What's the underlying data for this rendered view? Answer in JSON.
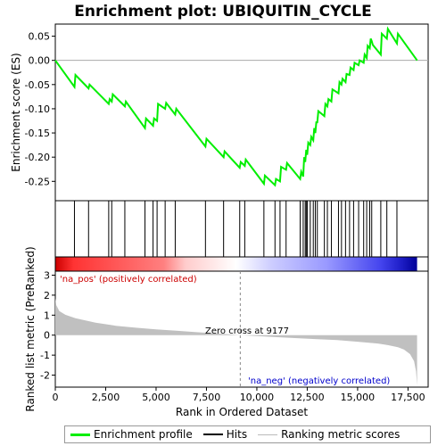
{
  "chart_data": {
    "type": "line",
    "title": "Enrichment plot: UBIQUITIN_CYCLE",
    "top_panel": {
      "ylabel": "Enrichment score (ES)",
      "ylim": [
        -0.29,
        0.075
      ],
      "yticks": [
        0.05,
        0.0,
        -0.05,
        -0.1,
        -0.15,
        -0.2,
        -0.25
      ],
      "ytick_labels": [
        "0.05",
        "0.00",
        "-0.05",
        "-0.10",
        "-0.15",
        "-0.20",
        "-0.25"
      ],
      "series": [
        {
          "name": "Enrichment profile",
          "color": "#00ee00",
          "x": [
            0,
            950,
            1000,
            1650,
            1700,
            2650,
            2700,
            2800,
            2850,
            3450,
            3500,
            4450,
            4500,
            4850,
            4900,
            5050,
            5100,
            5450,
            5500,
            5950,
            6000,
            7450,
            7500,
            8350,
            8400,
            9150,
            9200,
            9400,
            9450,
            10350,
            10400,
            10900,
            10950,
            11150,
            11200,
            11450,
            11500,
            12150,
            12200,
            12300,
            12350,
            12400,
            12450,
            12500,
            12550,
            12650,
            12700,
            12800,
            12850,
            12900,
            12950,
            13000,
            13050,
            13350,
            13400,
            13500,
            13550,
            13700,
            13750,
            14050,
            14100,
            14200,
            14250,
            14400,
            14450,
            14600,
            14650,
            14800,
            14850,
            15050,
            15100,
            15300,
            15350,
            15450,
            15500,
            15600,
            15650,
            15700,
            15750,
            16150,
            16200,
            16450,
            16500,
            16950,
            17000,
            17950
          ],
          "y": [
            0.0,
            -0.055,
            -0.03,
            -0.058,
            -0.05,
            -0.09,
            -0.08,
            -0.085,
            -0.07,
            -0.095,
            -0.085,
            -0.14,
            -0.12,
            -0.135,
            -0.12,
            -0.125,
            -0.09,
            -0.1,
            -0.088,
            -0.112,
            -0.1,
            -0.178,
            -0.162,
            -0.2,
            -0.188,
            -0.222,
            -0.21,
            -0.218,
            -0.205,
            -0.255,
            -0.238,
            -0.258,
            -0.245,
            -0.25,
            -0.22,
            -0.226,
            -0.212,
            -0.245,
            -0.23,
            -0.24,
            -0.2,
            -0.21,
            -0.185,
            -0.195,
            -0.17,
            -0.175,
            -0.158,
            -0.165,
            -0.14,
            -0.15,
            -0.128,
            -0.128,
            -0.105,
            -0.115,
            -0.09,
            -0.095,
            -0.08,
            -0.085,
            -0.06,
            -0.068,
            -0.045,
            -0.05,
            -0.038,
            -0.045,
            -0.028,
            -0.03,
            -0.015,
            -0.02,
            -0.005,
            -0.01,
            0.0,
            -0.005,
            0.012,
            0.005,
            0.03,
            0.025,
            0.045,
            0.04,
            0.032,
            0.012,
            0.055,
            0.045,
            0.065,
            0.035,
            0.055,
            0.0
          ]
        }
      ]
    },
    "hits_panel": {
      "name": "Hits",
      "hit_positions": [
        950,
        1650,
        2650,
        2800,
        3450,
        4450,
        4850,
        5050,
        5450,
        5950,
        7450,
        8350,
        9150,
        9400,
        10350,
        10900,
        11150,
        11450,
        12150,
        12300,
        12400,
        12450,
        12500,
        12650,
        12800,
        12900,
        13000,
        13350,
        13500,
        13700,
        14050,
        14200,
        14400,
        14600,
        14800,
        15050,
        15300,
        15450,
        15600,
        15700,
        16150,
        16450,
        16950
      ]
    },
    "bottom_panel": {
      "name": "Ranking metric scores",
      "xlabel": "Rank in Ordered Dataset",
      "ylabel": "Ranked list metric (PreRanked)",
      "ylim": [
        -2.6,
        3.2
      ],
      "yticks": [
        3,
        2,
        1,
        0,
        -1,
        -2
      ],
      "ytick_labels": [
        "3",
        "2",
        "1",
        "0",
        "-1",
        "-2"
      ],
      "metric_x": [
        0,
        50,
        200,
        500,
        1000,
        2000,
        3000,
        4000,
        5000,
        6000,
        7000,
        8000,
        9177,
        10000,
        11000,
        12000,
        13000,
        14000,
        15000,
        16000,
        16500,
        17000,
        17300,
        17600,
        17800,
        17900,
        17950
      ],
      "metric_y": [
        1.85,
        1.5,
        1.2,
        1.02,
        0.85,
        0.62,
        0.47,
        0.37,
        0.29,
        0.22,
        0.15,
        0.08,
        0.0,
        -0.05,
        -0.1,
        -0.15,
        -0.2,
        -0.25,
        -0.33,
        -0.42,
        -0.5,
        -0.6,
        -0.72,
        -0.95,
        -1.3,
        -1.8,
        -2.5
      ],
      "pos_label": "'na_pos' (positively correlated)",
      "neg_label": "'na_neg' (negatively correlated)",
      "zero_cross_label": "Zero cross at 9177",
      "zero_cross": 9177
    },
    "xlim": [
      0,
      18500
    ],
    "xticks": [
      0,
      2500,
      5000,
      7500,
      10000,
      12500,
      15000,
      17500
    ],
    "xtick_labels": [
      "0",
      "2,500",
      "5,000",
      "7,500",
      "10,000",
      "12,500",
      "15,000",
      "17,500"
    ],
    "legend": {
      "placement": "bottom",
      "items": [
        "Enrichment profile",
        "Hits",
        "Ranking metric scores"
      ]
    }
  },
  "colors": {
    "es_line": "#00ee00",
    "pos_label": "#cc0000",
    "neg_label": "#0000cc",
    "metric_fill": "#c0c0c0"
  }
}
